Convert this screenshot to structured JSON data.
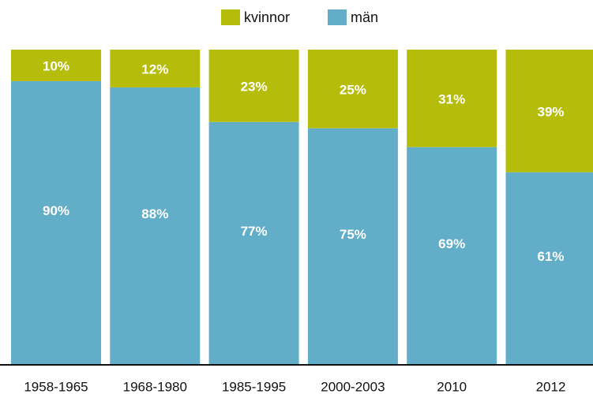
{
  "chart_data": {
    "type": "stacked_bar",
    "categories": [
      "1958-1965",
      "1968-1980",
      "1985-1995",
      "2000-2003",
      "2010",
      "2012"
    ],
    "series": [
      {
        "name": "kvinnor",
        "color": "#b5bd0a",
        "values": [
          10,
          12,
          23,
          25,
          31,
          39
        ],
        "value_labels": [
          "10%",
          "12%",
          "23%",
          "25%",
          "31%",
          "39%"
        ]
      },
      {
        "name": "män",
        "color": "#62adc8",
        "values": [
          90,
          88,
          77,
          75,
          69,
          61
        ],
        "value_labels": [
          "90%",
          "88%",
          "77%",
          "75%",
          "69%",
          "61%"
        ]
      }
    ],
    "ylim": [
      0,
      100
    ],
    "legend": "top"
  }
}
